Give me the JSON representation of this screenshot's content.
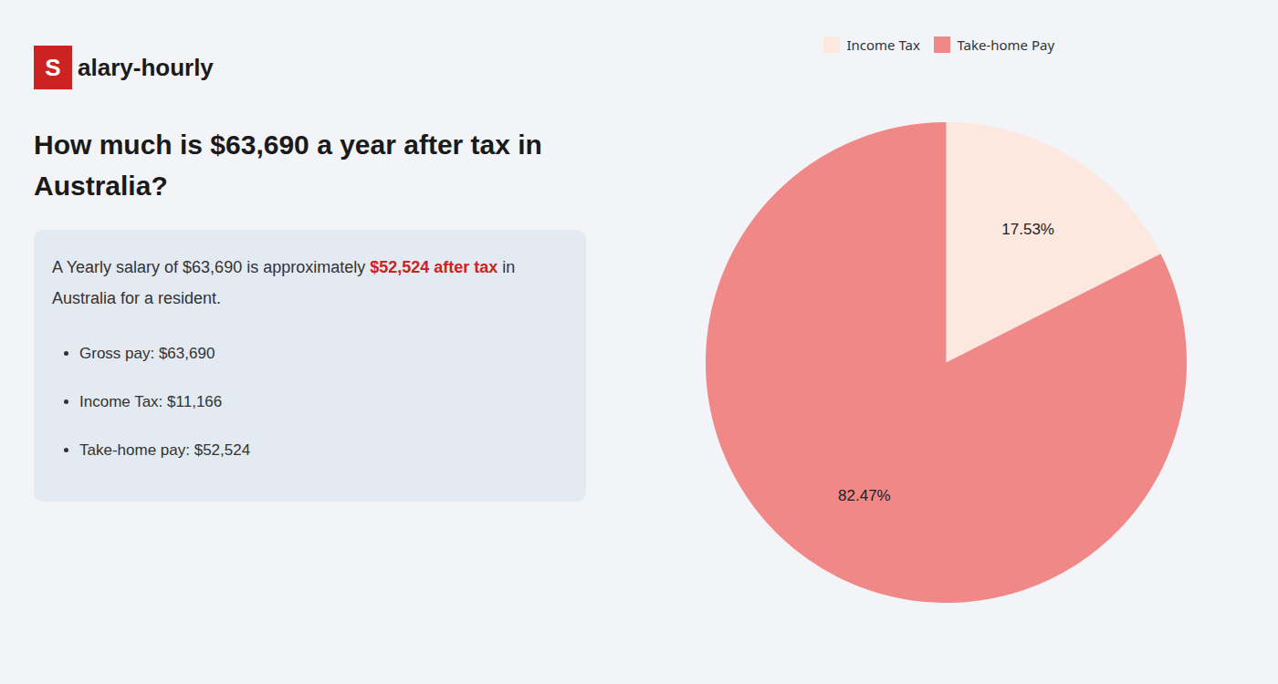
{
  "chart_data": {
    "type": "pie",
    "title": "How much is $63,690 a year after tax in Australia?",
    "logo": [
      {
        "text": "S",
        "color": "#cc2222"
      },
      {
        "text": "alary-hourly"
      }
    ],
    "subtitle": [
      {
        "text": "A Yearly salary of $63,690 is approximately "
      },
      {
        "text": "$52,524 after tax",
        "color": "#cc2222"
      },
      {
        "text": " in Australia for a resident."
      }
    ],
    "annotations": [
      "Gross pay: $63,690",
      "Income Tax: $11,166",
      "Take-home pay: $52,524"
    ],
    "categories": [
      "Income Tax",
      "Take-home Pay"
    ],
    "values": [
      17.53,
      82.47
    ],
    "value_labels": [
      "17.53%",
      "82.47%"
    ],
    "colors": [
      "#fce8df",
      "#f08888"
    ],
    "data_labels": true,
    "legend": "top"
  }
}
